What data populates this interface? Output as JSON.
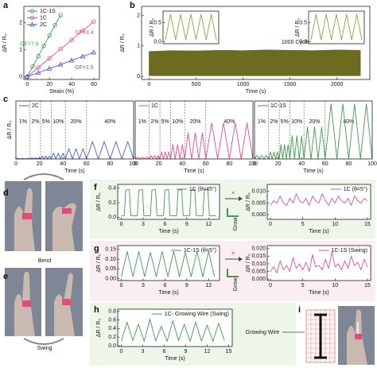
{
  "panel_labels": [
    "a",
    "b",
    "c",
    "d",
    "e",
    "f",
    "g",
    "h",
    "i"
  ],
  "figure_text": {
    "bend": "Bend",
    "swing": "Swing",
    "growing_wire": "Growing Wire",
    "grow": [
      "Grow",
      "Grow"
    ],
    "cross": [
      "×",
      "×"
    ]
  },
  "chart_data": [
    {
      "type": "scatter",
      "xlabel": "Strain (%)",
      "ylabel": "ΔR / R₀",
      "xlim": [
        -3,
        65
      ],
      "ylim": [
        -0.1,
        2.6
      ],
      "xticks": [
        0,
        20,
        40,
        60
      ],
      "yticks": [
        0,
        1,
        2
      ],
      "legend": "upper left",
      "series": [
        {
          "name": "1C-1S",
          "color": "#3f9a4f",
          "marker": "circle",
          "label": "GF=7.6",
          "x": [
            0,
            5,
            10,
            15,
            20,
            25,
            30
          ],
          "values": [
            0,
            0.38,
            0.76,
            1.14,
            1.52,
            1.9,
            2.28
          ]
        },
        {
          "name": "1C",
          "color": "#e0508a",
          "marker": "circle",
          "label": "GF=3.4",
          "x": [
            0,
            10,
            20,
            30,
            40,
            50,
            60
          ],
          "values": [
            0,
            0.34,
            0.68,
            1.02,
            1.36,
            1.7,
            2.04
          ]
        },
        {
          "name": "2C",
          "color": "#4a5cc0",
          "marker": "triangle",
          "label": "GF=1.5",
          "x": [
            0,
            10,
            20,
            30,
            40,
            50,
            60
          ],
          "values": [
            0,
            0.15,
            0.3,
            0.45,
            0.6,
            0.75,
            0.9
          ]
        }
      ]
    },
    {
      "type": "area",
      "xlabel": "Time (s)",
      "ylabel": "ΔR / R₀",
      "annotation": "1000 Cycles",
      "xlim": [
        -80,
        2350
      ],
      "ylim": [
        -0.1,
        2.3
      ],
      "xticks": [
        0,
        500,
        1000,
        1500,
        2000
      ],
      "yticks": [
        0,
        1,
        2
      ],
      "series": [
        {
          "color": "#6d6b1f",
          "x": [
            0,
            250,
            500,
            750,
            1000,
            1250,
            1500,
            1750,
            2000,
            2250
          ],
          "values": [
            0.82,
            0.85,
            0.84,
            0.86,
            0.85,
            0.87,
            0.86,
            0.85,
            0.87,
            0.86
          ],
          "lower": [
            0.02,
            0.02,
            0.02,
            0.02,
            0.02,
            0.02,
            0.02,
            0.02,
            0.02,
            0.02
          ]
        }
      ]
    },
    {
      "type": "line",
      "ylabel": "ΔR / R₀",
      "ylim": [
        -0.05,
        0.8
      ],
      "yticks": [
        {
          "value": 0,
          "label": "0.0"
        },
        0.5
      ],
      "series": [
        {
          "color": "#9a9a3a",
          "values": [
            0.05,
            0.72,
            0.05,
            0.72,
            0.05,
            0.72,
            0.05,
            0.72,
            0.05,
            0.72,
            0.05
          ]
        }
      ]
    },
    {
      "type": "line",
      "ylabel": "ΔR / R₀",
      "ylim": [
        -0.05,
        0.8
      ],
      "yticks": [
        {
          "value": 0,
          "label": "0.0"
        },
        0.5
      ],
      "series": [
        {
          "color": "#9a9a3a",
          "values": [
            0.05,
            0.72,
            0.05,
            0.72,
            0.05,
            0.72,
            0.05,
            0.72,
            0.05,
            0.72,
            0.05
          ]
        }
      ]
    },
    {
      "type": "line",
      "xlabel": "Time (s)",
      "ylabel": "ΔR / R₀",
      "xlim": [
        0,
        100
      ],
      "ylim": [
        0,
        1
      ],
      "xticks": [
        0,
        20,
        40,
        60,
        80,
        100
      ],
      "legend": "upper left",
      "boundaries": [
        12,
        21,
        30,
        42,
        60
      ],
      "segment_labels": [
        "1%",
        "2%",
        "5%",
        "10%",
        "20%",
        "40%"
      ],
      "series": [
        {
          "name": "2C",
          "color": "#4a5cc0",
          "x": [
            0,
            2,
            4,
            6,
            8,
            10,
            12,
            13.5,
            15,
            16.5,
            18,
            19.5,
            21,
            22.5,
            24,
            25.5,
            27,
            28.5,
            30,
            32,
            34,
            36,
            38,
            40,
            42,
            45,
            48,
            51,
            54,
            57,
            60,
            65,
            70,
            75,
            80,
            85,
            90,
            95,
            100
          ],
          "values": [
            0,
            0.01,
            0,
            0.01,
            0,
            0.01,
            0,
            0.02,
            0,
            0.02,
            0,
            0.02,
            0,
            0.05,
            0,
            0.05,
            0,
            0.05,
            0,
            0.1,
            0,
            0.1,
            0,
            0.1,
            0,
            0.18,
            0,
            0.18,
            0,
            0.18,
            0,
            0.3,
            0,
            0.3,
            0,
            0.3,
            0,
            0.3,
            0
          ]
        }
      ]
    },
    {
      "type": "line",
      "xlabel": "Time (s)",
      "xlim": [
        0,
        100
      ],
      "ylim": [
        0,
        1
      ],
      "xticks": [
        0,
        20,
        40,
        60,
        80,
        100
      ],
      "legend": "upper left",
      "boundaries": [
        12,
        21,
        30,
        42,
        60
      ],
      "segment_labels": [
        "1%",
        "2%",
        "5%",
        "10%",
        "20%",
        "40%"
      ],
      "series": [
        {
          "name": "1C",
          "color": "#e0508a",
          "x": [
            0,
            2,
            4,
            6,
            8,
            10,
            12,
            13.5,
            15,
            16.5,
            18,
            19.5,
            21,
            22.5,
            24,
            25.5,
            27,
            28.5,
            30,
            32,
            34,
            36,
            38,
            40,
            42,
            45,
            48,
            51,
            54,
            57,
            60,
            65,
            70,
            75,
            80,
            85,
            90,
            95,
            100
          ],
          "values": [
            0,
            0.03,
            0,
            0.03,
            0,
            0.03,
            0,
            0.06,
            0,
            0.06,
            0,
            0.06,
            0,
            0.12,
            0,
            0.12,
            0,
            0.12,
            0,
            0.25,
            0,
            0.25,
            0,
            0.25,
            0,
            0.45,
            0,
            0.45,
            0,
            0.45,
            0,
            0.62,
            0,
            0.62,
            0,
            0.62,
            0,
            0.62,
            0
          ]
        }
      ]
    },
    {
      "type": "line",
      "xlabel": "Time (s)",
      "xlim": [
        0,
        100
      ],
      "ylim": [
        0,
        1
      ],
      "xticks": [
        0,
        20,
        40,
        60,
        80,
        100
      ],
      "legend": "upper left",
      "boundaries": [
        12,
        21,
        30,
        42,
        60
      ],
      "segment_labels": [
        "1%",
        "2%",
        "5%",
        "10%",
        "20%",
        "40%"
      ],
      "series": [
        {
          "name": "1C-1S",
          "color": "#3f9a4f",
          "x": [
            0,
            2,
            4,
            6,
            8,
            10,
            12,
            13.5,
            15,
            16.5,
            18,
            19.5,
            21,
            22.5,
            24,
            25.5,
            27,
            28.5,
            30,
            32,
            34,
            36,
            38,
            40,
            42,
            45,
            48,
            51,
            54,
            57,
            60,
            65,
            70,
            75,
            80,
            85,
            90,
            95,
            100
          ],
          "values": [
            0,
            0.06,
            0,
            0.06,
            0,
            0.06,
            0,
            0.12,
            0,
            0.12,
            0,
            0.12,
            0,
            0.25,
            0,
            0.25,
            0,
            0.25,
            0,
            0.4,
            0,
            0.4,
            0,
            0.4,
            0,
            0.55,
            0,
            0.55,
            0,
            0.55,
            0,
            0.95,
            0,
            0.95,
            0,
            0.95,
            0,
            0.95,
            0
          ]
        }
      ]
    },
    {
      "type": "line",
      "xlabel": "Time (s)",
      "ylabel": "ΔR / R₀",
      "xlim": [
        -0.5,
        13.5
      ],
      "ylim": [
        -0.03,
        0.45
      ],
      "xticks": [
        0,
        3,
        6,
        9,
        12
      ],
      "yticks": [
        {
          "value": 0,
          "label": "0.0"
        },
        0.2,
        0.4
      ],
      "legend": "upper right",
      "series": [
        {
          "name": "1C (θ=45°)",
          "color": "#3f9a4f",
          "x": [
            0,
            0.4,
            0.6,
            1.1,
            1.3,
            2.2,
            2.4,
            2.9,
            3.1,
            4,
            4.2,
            4.7,
            4.9,
            5.8,
            6,
            6.5,
            6.7,
            7.6,
            7.8,
            8.3,
            8.5,
            9.4,
            9.6,
            10.1,
            10.3,
            11.2,
            11.4,
            11.9,
            12.1,
            13
          ],
          "values": [
            0.02,
            0.02,
            0.37,
            0.38,
            0.02,
            0.02,
            0.37,
            0.38,
            0.02,
            0.02,
            0.37,
            0.38,
            0.02,
            0.02,
            0.37,
            0.38,
            0.02,
            0.02,
            0.37,
            0.38,
            0.02,
            0.02,
            0.37,
            0.38,
            0.02,
            0.02,
            0.37,
            0.38,
            0.02,
            0.02
          ]
        }
      ]
    },
    {
      "type": "line",
      "xlabel": "Time (s)",
      "ylabel": "ΔR / R₀",
      "xlim": [
        -0.5,
        15.5
      ],
      "ylim": [
        -0.002,
        0.013
      ],
      "xticks": [
        0,
        5,
        10,
        15
      ],
      "yticks": [
        {
          "value": 0,
          "label": "0.000"
        },
        0.005,
        {
          "value": 0.01,
          "label": "0.010"
        }
      ],
      "legend": "upper right",
      "series": [
        {
          "name": "1C (θ=5°)",
          "color": "#e0508a",
          "x": [
            0,
            0.5,
            1,
            1.5,
            2,
            2.5,
            3,
            3.5,
            4,
            4.5,
            5,
            5.5,
            6,
            6.5,
            7,
            7.5,
            8,
            8.5,
            9,
            9.5,
            10,
            10.5,
            11,
            11.5,
            12,
            12.5,
            13,
            13.5,
            14,
            14.5,
            15
          ],
          "values": [
            0.004,
            0.006,
            0.005,
            0.008,
            0.005,
            0.004,
            0.007,
            0.005,
            0.009,
            0.006,
            0.005,
            0.007,
            0.004,
            0.008,
            0.006,
            0.005,
            0.009,
            0.006,
            0.004,
            0.007,
            0.005,
            0.008,
            0.006,
            0.005,
            0.007,
            0.004,
            0.008,
            0.006,
            0.005,
            0.007,
            0.006
          ]
        }
      ]
    },
    {
      "type": "line",
      "xlabel": "Time (s)",
      "ylabel": "ΔR / R₀",
      "xlim": [
        -0.5,
        13.5
      ],
      "ylim": [
        -0.01,
        0.17
      ],
      "xticks": [
        0,
        3,
        6,
        9,
        12
      ],
      "yticks": [
        {
          "value": 0,
          "label": "0.00"
        },
        0.05,
        {
          "value": 0.1,
          "label": "0.10"
        },
        0.15
      ],
      "legend": "upper right",
      "series": [
        {
          "name": "1C-1S (θ=5°)",
          "color": "#3f9a4f",
          "x": [
            0,
            0.8,
            1.6,
            2.4,
            3.2,
            4,
            4.8,
            5.6,
            6.4,
            7.2,
            8,
            8.8,
            9.6,
            10.4,
            11.2,
            12,
            12.8
          ],
          "values": [
            0.01,
            0.14,
            0.01,
            0.14,
            0.01,
            0.135,
            0.01,
            0.14,
            0.01,
            0.14,
            0.01,
            0.135,
            0.01,
            0.14,
            0.01,
            0.14,
            0.01
          ]
        }
      ]
    },
    {
      "type": "line",
      "xlabel": "Time (s)",
      "ylabel": "ΔR / R₀",
      "xlim": [
        -0.5,
        15.5
      ],
      "ylim": [
        -0.001,
        0.022
      ],
      "xticks": [
        0,
        5,
        10,
        15
      ],
      "yticks": [
        {
          "value": 0,
          "label": "0.000"
        },
        0.005,
        {
          "value": 0.01,
          "label": "0.010"
        },
        0.015,
        {
          "value": 0.02,
          "label": "0.020"
        }
      ],
      "legend": "upper right",
      "series": [
        {
          "name": "1C-1S (Swing)",
          "color": "#e0508a",
          "x": [
            0,
            0.5,
            1,
            1.5,
            2,
            2.5,
            3,
            3.5,
            4,
            4.5,
            5,
            5.5,
            6,
            6.5,
            7,
            7.5,
            8,
            8.5,
            9,
            9.5,
            10,
            10.5,
            11,
            11.5,
            12,
            12.5,
            13,
            13.5,
            14,
            14.5,
            15
          ],
          "values": [
            0.005,
            0.008,
            0.004,
            0.012,
            0.006,
            0.009,
            0.005,
            0.014,
            0.007,
            0.01,
            0.006,
            0.011,
            0.005,
            0.016,
            0.008,
            0.009,
            0.006,
            0.013,
            0.007,
            0.018,
            0.008,
            0.01,
            0.006,
            0.012,
            0.007,
            0.015,
            0.009,
            0.011,
            0.006,
            0.013,
            0.008
          ]
        }
      ]
    },
    {
      "type": "line",
      "xlabel": "Time (s)",
      "ylabel": "ΔR / R₀",
      "xlim": [
        -0.5,
        15.5
      ],
      "ylim": [
        -0.02,
        0.85
      ],
      "xticks": [
        0,
        3,
        6,
        9,
        12,
        15
      ],
      "yticks": [
        {
          "value": 0,
          "label": "0.0"
        },
        0.2,
        0.4,
        0.6,
        0.8
      ],
      "legend": "upper right",
      "series": [
        {
          "name": "1C- Growing Wire (Swing)",
          "color": "#3f9a4f",
          "x": [
            0,
            0.8,
            1.6,
            2.4,
            3.2,
            4,
            4.8,
            5.6,
            6.4,
            7.2,
            8,
            8.8,
            9.6,
            10.4,
            11.2,
            12,
            12.8,
            13.6,
            14.4
          ],
          "values": [
            0.1,
            0.55,
            0.12,
            0.5,
            0.1,
            0.62,
            0.11,
            0.45,
            0.1,
            0.58,
            0.12,
            0.5,
            0.1,
            0.55,
            0.11,
            0.48,
            0.1,
            0.52,
            0.12
          ]
        }
      ]
    }
  ]
}
